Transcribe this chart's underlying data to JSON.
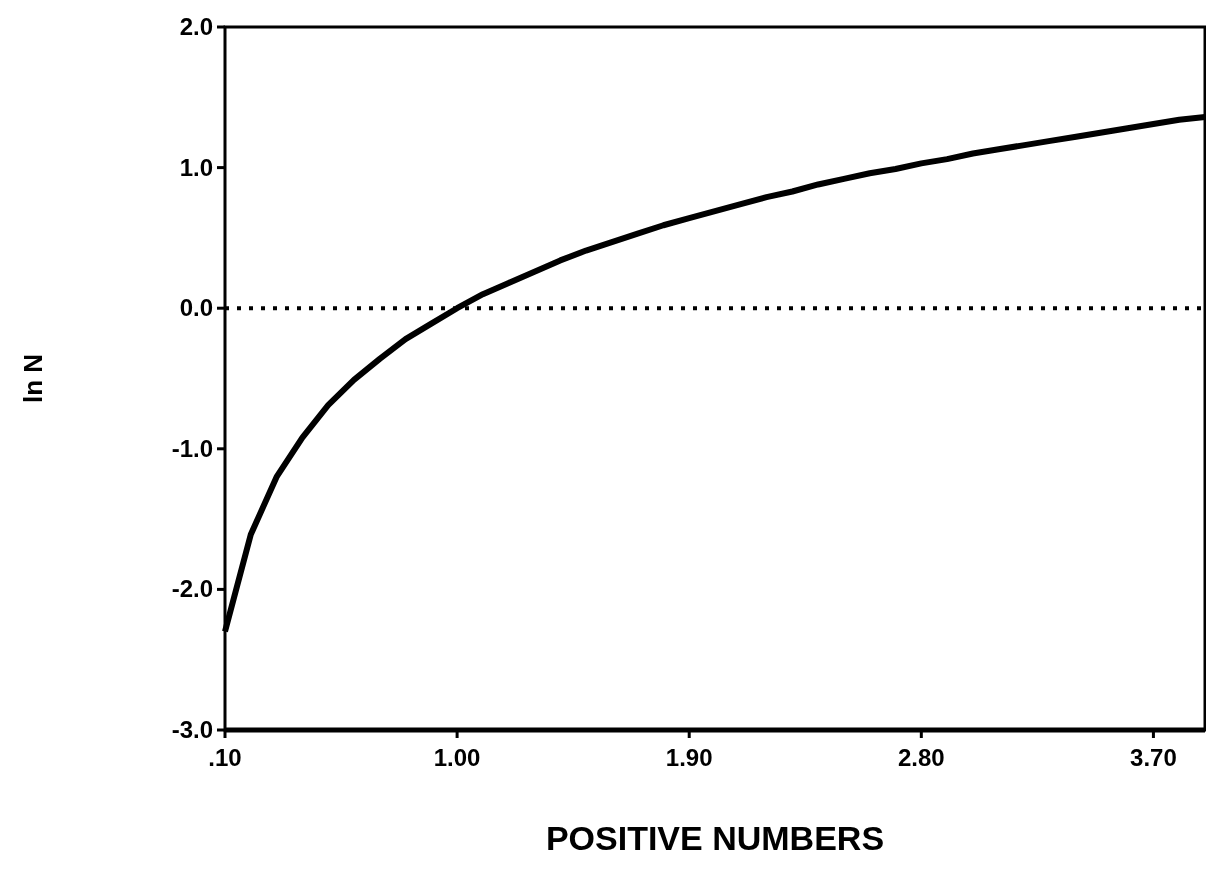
{
  "chart_data": {
    "type": "line",
    "xlabel": "POSITIVE NUMBERS",
    "ylabel": "ln N",
    "x": [
      0.1,
      0.2,
      0.3,
      0.4,
      0.5,
      0.6,
      0.7,
      0.8,
      0.9,
      1.0,
      1.1,
      1.2,
      1.3,
      1.4,
      1.5,
      1.6,
      1.7,
      1.8,
      1.9,
      2.0,
      2.1,
      2.2,
      2.3,
      2.4,
      2.5,
      2.6,
      2.7,
      2.8,
      2.9,
      3.0,
      3.1,
      3.2,
      3.3,
      3.4,
      3.5,
      3.6,
      3.7,
      3.8,
      3.9
    ],
    "series": [
      {
        "color": "#000000",
        "values": [
          -2.3,
          -1.61,
          -1.2,
          -0.92,
          -0.69,
          -0.51,
          -0.36,
          -0.22,
          -0.11,
          0,
          0.1,
          0.18,
          0.26,
          0.34,
          0.41,
          0.47,
          0.53,
          0.59,
          0.64,
          0.69,
          0.74,
          0.79,
          0.83,
          0.88,
          0.92,
          0.96,
          0.99,
          1.03,
          1.06,
          1.1,
          1.13,
          1.16,
          1.19,
          1.22,
          1.25,
          1.28,
          1.31,
          1.34,
          1.36
        ]
      }
    ],
    "xlim": [
      0.1,
      3.9
    ],
    "xticks": [
      {
        "value": 0.1,
        "label": ".10"
      },
      {
        "value": 1.0,
        "label": "1.00"
      },
      {
        "value": 1.9,
        "label": "1.90"
      },
      {
        "value": 2.8,
        "label": "2.80"
      },
      {
        "value": 3.7,
        "label": "3.70"
      }
    ],
    "ylim": [
      -3,
      2
    ],
    "yticks": [
      {
        "value": -3,
        "label": "-3.0"
      },
      {
        "value": -2,
        "label": "-2.0"
      },
      {
        "value": -1,
        "label": "-1.0"
      },
      {
        "value": 0,
        "label": "0.0"
      },
      {
        "value": 1,
        "label": "1.0"
      },
      {
        "value": 2,
        "label": "2.0"
      }
    ],
    "ref_lines": [
      {
        "axis": "y",
        "value": 0,
        "color": "#000000",
        "line_style": "dotted"
      }
    ],
    "grid": false,
    "marker": "none",
    "line_style": "solid"
  }
}
